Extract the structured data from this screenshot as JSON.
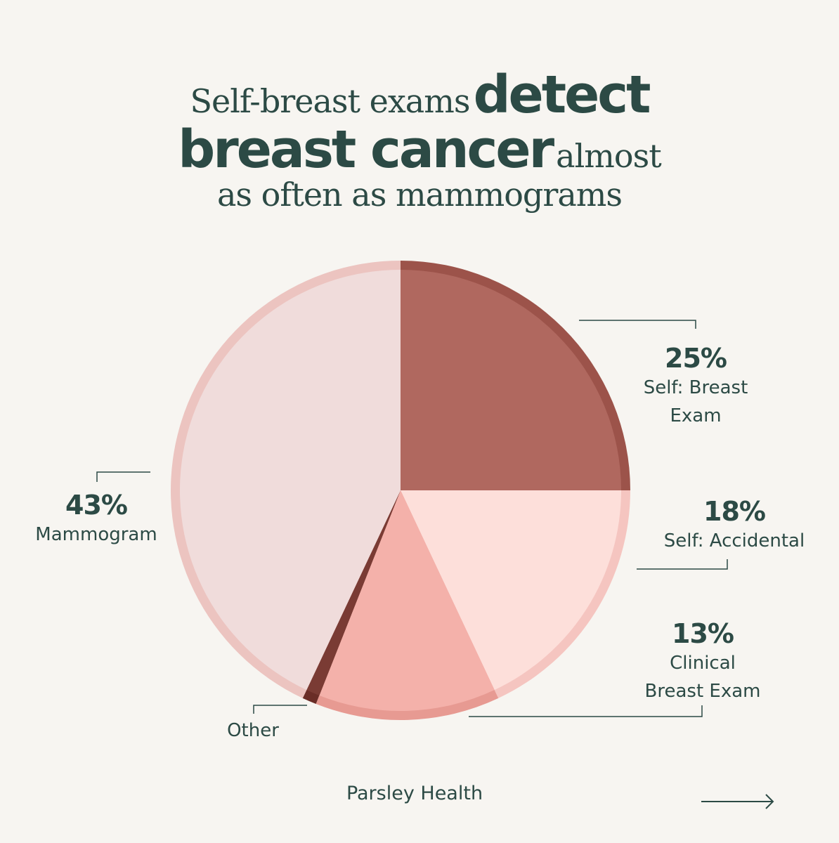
{
  "headline": {
    "line1_light": "Self-breast exams",
    "line1_bold": "detect",
    "line2_bold": "breast cancer",
    "line2_light": "almost",
    "line3_light": "as often as mammograms"
  },
  "chart_data": {
    "type": "pie",
    "title": "Self-breast exams detect breast cancer almost as often as mammograms",
    "slices": [
      {
        "category": "Self: Breast Exam",
        "value": 25,
        "label": "25%",
        "color": "#b0685f"
      },
      {
        "category": "Self: Accidental",
        "value": 18,
        "label": "18%",
        "color": "#fddfda"
      },
      {
        "category": "Clinical Breast Exam",
        "value": 13,
        "label": "13%",
        "color": "#f4b1aa"
      },
      {
        "category": "Other",
        "value": 1,
        "label": "",
        "color": "#7a3b34"
      },
      {
        "category": "Mammogram",
        "value": 43,
        "label": "43%",
        "color": "#f0dcdb"
      }
    ],
    "ring_colors": [
      "#9c534a",
      "#f5c5c0",
      "#e79a92",
      "#6a2d27",
      "#ecc4c0"
    ]
  },
  "labels": {
    "self_breast": {
      "pct": "25%",
      "line1": "Self: Breast",
      "line2": "Exam"
    },
    "self_accidental": {
      "pct": "18%",
      "line1": "Self: Accidental"
    },
    "clinical": {
      "pct": "13%",
      "line1": "Clinical",
      "line2": "Breast Exam"
    },
    "mammogram": {
      "pct": "43%",
      "line1": "Mammogram"
    },
    "other": {
      "line1": "Other"
    }
  },
  "footer": {
    "brand": "Parsley Health"
  },
  "colors": {
    "background": "#f7f5f1",
    "text": "#2c4a45"
  }
}
